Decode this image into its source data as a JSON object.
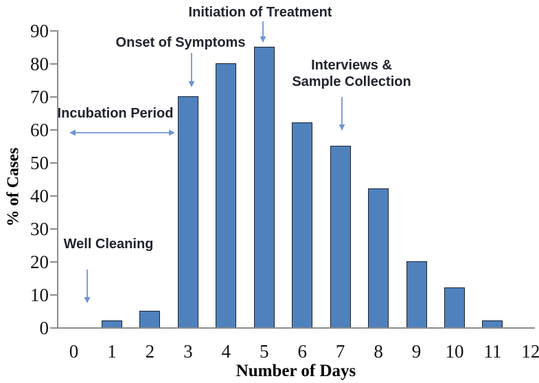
{
  "figure": {
    "background": "#ffffff"
  },
  "chart_data": {
    "type": "bar",
    "title": "",
    "xlabel": "Number of Days",
    "ylabel": "% of Cases",
    "categories": [
      0,
      1,
      2,
      3,
      4,
      5,
      6,
      7,
      8,
      9,
      10,
      11,
      12
    ],
    "values": [
      0,
      2,
      5,
      70,
      80,
      85,
      62,
      55,
      42,
      20,
      12,
      2,
      0
    ],
    "ylim": [
      0,
      90
    ],
    "yticks": [
      0,
      10,
      20,
      30,
      40,
      50,
      60,
      70,
      80,
      90
    ],
    "grid": "off",
    "legend": "none",
    "colors": {
      "bar_fill": "#4F81BD",
      "bar_border": "#1a2433",
      "axis": "#8c8c8c",
      "arrow": "#6F96D2",
      "tick_text": "#141414",
      "annotation_text": "#21242e"
    },
    "annotations": [
      {
        "id": "initiation",
        "lines": [
          "Initiation of Treatment"
        ],
        "target": "day 5 bar (85%)",
        "arrow": "down"
      },
      {
        "id": "onset",
        "lines": [
          "Onset of Symptoms"
        ],
        "target": "day 3 bar (70%)",
        "arrow": "down"
      },
      {
        "id": "incubation",
        "lines": [
          "Incubation Period"
        ],
        "target": "days 0 to 3 span at ~59%",
        "arrow": "double-horizontal"
      },
      {
        "id": "interviews",
        "lines": [
          "Interviews &",
          "Sample Collection"
        ],
        "target": "day 7 bar (55%)",
        "arrow": "down"
      },
      {
        "id": "well",
        "lines": [
          "Well Cleaning"
        ],
        "target": "day 0.4 near baseline",
        "arrow": "down"
      }
    ]
  }
}
